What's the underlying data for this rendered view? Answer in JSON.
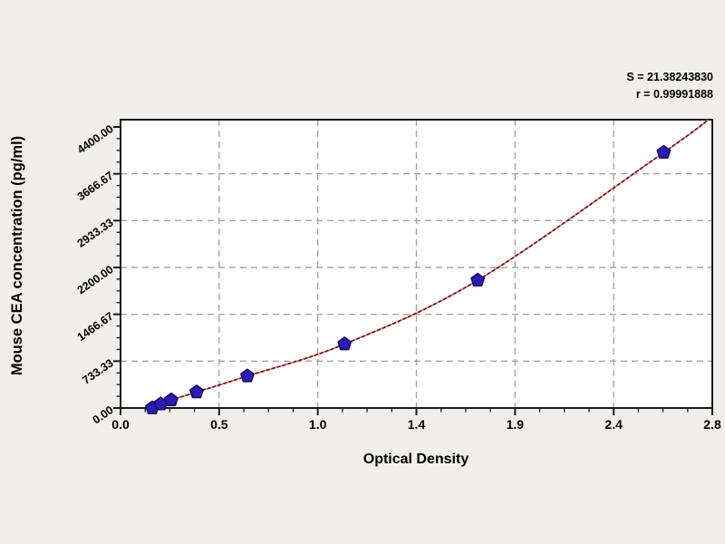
{
  "page": {
    "background": "#f0efeb"
  },
  "chart_data": {
    "type": "scatter",
    "title": "",
    "xlabel": "Optical Density",
    "ylabel": "Mouse CEA concentration (pg/ml)",
    "xlim": [
      0,
      2.8
    ],
    "ylim": [
      0,
      4400
    ],
    "x_tick_labels": [
      "0.0",
      "0.5",
      "1.0",
      "1.4",
      "1.9",
      "2.4",
      "2.8"
    ],
    "y_tick_labels": [
      "0.00",
      "733.33",
      "1466.67",
      "2200.00",
      "2933.33",
      "3666.67",
      "4400.00"
    ],
    "grid": "dashed gray gridlines at interior major ticks, both axes",
    "legend": "none",
    "annotations": [
      "S = 21.38243830",
      "r = 0.99991888"
    ],
    "series": [
      {
        "name": "standard-points",
        "type": "scatter",
        "marker": "pentagon",
        "points_od_conc": [
          [
            0.15,
            0
          ],
          [
            0.19,
            62.5
          ],
          [
            0.24,
            125
          ],
          [
            0.36,
            250
          ],
          [
            0.6,
            500
          ],
          [
            1.06,
            1000
          ],
          [
            1.69,
            2000
          ],
          [
            2.57,
            4000
          ]
        ]
      },
      {
        "name": "fitted-curve",
        "type": "line",
        "description": "regression curve through standard points, rising from origin area and exiting the top-right corner of the plot"
      }
    ],
    "colors": {
      "curve_dark": "#7d1517",
      "curve_light": "#c98181",
      "marker_fill": "#2d1cb4",
      "marker_edge": "#1a0b66",
      "grid": "#a5a5a5",
      "frame": "#1a1a1a",
      "plot_bg": "#ffffff",
      "page_bg": "#f0efeb",
      "text": "#000000"
    }
  }
}
